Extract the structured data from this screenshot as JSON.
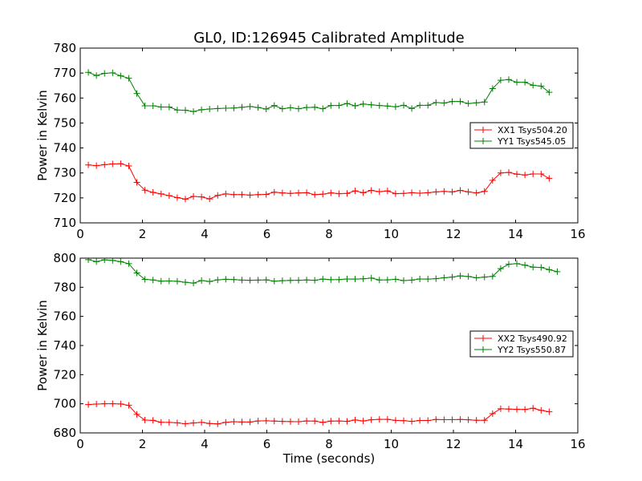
{
  "figure": {
    "title": "GL0, ID:126945 Calibrated Amplitude",
    "xlabel": "Time (seconds)"
  },
  "colors": {
    "red": "#ff0000",
    "green": "#008000"
  },
  "chart_data": [
    {
      "type": "line",
      "ylabel": "Power in Kelvin",
      "xlim": [
        0,
        16
      ],
      "ylim": [
        710,
        780
      ],
      "xticks": [
        "0",
        "2",
        "4",
        "6",
        "8",
        "10",
        "12",
        "14",
        "16"
      ],
      "yticks": [
        "710",
        "720",
        "730",
        "740",
        "750",
        "760",
        "770",
        "780"
      ],
      "legend_placement": "center-right",
      "series": [
        {
          "name": "XX1 Tsys504.20",
          "color": "#ff0000",
          "marker": "+",
          "x": [
            0.26,
            0.52,
            0.78,
            1.04,
            1.3,
            1.56,
            1.82,
            2.08,
            2.34,
            2.6,
            2.86,
            3.12,
            3.38,
            3.64,
            3.9,
            4.16,
            4.42,
            4.68,
            4.94,
            5.2,
            5.46,
            5.72,
            5.98,
            6.24,
            6.5,
            6.76,
            7.02,
            7.28,
            7.54,
            7.8,
            8.06,
            8.32,
            8.58,
            8.84,
            9.1,
            9.36,
            9.62,
            9.88,
            10.14,
            10.4,
            10.66,
            10.92,
            11.18,
            11.44,
            11.7,
            11.96,
            12.22,
            12.48,
            12.74,
            13.0,
            13.26,
            13.52,
            13.78,
            14.04,
            14.3,
            14.56,
            14.82,
            15.08,
            15.34
          ],
          "y": [
            733.2,
            732.9,
            733.3,
            733.6,
            733.7,
            732.8,
            726.2,
            723.1,
            722.2,
            721.6,
            720.9,
            720.1,
            719.5,
            720.6,
            720.4,
            719.6,
            721.0,
            721.6,
            721.3,
            721.3,
            721.1,
            721.3,
            721.4,
            722.3,
            722.0,
            721.8,
            722.0,
            722.1,
            721.3,
            721.5,
            722.0,
            721.7,
            721.8,
            722.8,
            722.1,
            723.0,
            722.5,
            722.8,
            721.7,
            721.8,
            722.1,
            721.9,
            722.1,
            722.4,
            722.6,
            722.4,
            723.0,
            722.4,
            722.0,
            722.6,
            727.0,
            730.0,
            730.2,
            729.5,
            729.2,
            729.6,
            729.6,
            727.8,
            null
          ]
        },
        {
          "name": "YY1 Tsys545.05",
          "color": "#008000",
          "marker": "+",
          "x": [
            0.26,
            0.52,
            0.78,
            1.04,
            1.3,
            1.56,
            1.82,
            2.08,
            2.34,
            2.6,
            2.86,
            3.12,
            3.38,
            3.64,
            3.9,
            4.16,
            4.42,
            4.68,
            4.94,
            5.2,
            5.46,
            5.72,
            5.98,
            6.24,
            6.5,
            6.76,
            7.02,
            7.28,
            7.54,
            7.8,
            8.06,
            8.32,
            8.58,
            8.84,
            9.1,
            9.36,
            9.62,
            9.88,
            10.14,
            10.4,
            10.66,
            10.92,
            11.18,
            11.44,
            11.7,
            11.96,
            12.22,
            12.48,
            12.74,
            13.0,
            13.26,
            13.52,
            13.78,
            14.04,
            14.3,
            14.56,
            14.82,
            15.08,
            15.34
          ],
          "y": [
            770.3,
            769.0,
            769.9,
            770.1,
            768.9,
            767.9,
            761.8,
            756.9,
            756.9,
            756.4,
            756.4,
            755.2,
            755.1,
            754.6,
            755.3,
            755.6,
            755.8,
            755.9,
            756.0,
            756.3,
            756.6,
            756.2,
            755.6,
            757.0,
            755.7,
            756.1,
            755.7,
            756.2,
            756.3,
            755.7,
            757.0,
            757.0,
            757.8,
            756.9,
            757.6,
            757.3,
            757.0,
            756.8,
            756.5,
            757.1,
            755.8,
            757.1,
            757.1,
            758.2,
            758.0,
            758.6,
            758.6,
            757.8,
            758.1,
            758.4,
            763.8,
            767.1,
            767.4,
            766.3,
            766.3,
            765.1,
            764.8,
            762.3,
            null
          ]
        }
      ]
    },
    {
      "type": "line",
      "ylabel": "Power in Kelvin",
      "xlim": [
        0,
        16
      ],
      "ylim": [
        680,
        800
      ],
      "xticks": [
        "0",
        "2",
        "4",
        "6",
        "8",
        "10",
        "12",
        "14",
        "16"
      ],
      "yticks": [
        "680",
        "700",
        "720",
        "740",
        "760",
        "780",
        "800"
      ],
      "legend_placement": "center-right",
      "series": [
        {
          "name": "XX2 Tsys490.92",
          "color": "#ff0000",
          "marker": "+",
          "x": [
            0.26,
            0.52,
            0.78,
            1.04,
            1.3,
            1.56,
            1.82,
            2.08,
            2.34,
            2.6,
            2.86,
            3.12,
            3.38,
            3.64,
            3.9,
            4.16,
            4.42,
            4.68,
            4.94,
            5.2,
            5.46,
            5.72,
            5.98,
            6.24,
            6.5,
            6.76,
            7.02,
            7.28,
            7.54,
            7.8,
            8.06,
            8.32,
            8.58,
            8.84,
            9.1,
            9.36,
            9.62,
            9.88,
            10.14,
            10.4,
            10.66,
            10.92,
            11.18,
            11.44,
            11.7,
            11.96,
            12.22,
            12.48,
            12.74,
            13.0,
            13.26,
            13.52,
            13.78,
            14.04,
            14.3,
            14.56,
            14.82,
            15.08,
            15.34
          ],
          "y": [
            699.5,
            699.8,
            700.0,
            700.0,
            699.9,
            698.9,
            692.7,
            688.8,
            688.6,
            687.3,
            687.2,
            686.9,
            686.3,
            686.8,
            687.2,
            686.5,
            686.2,
            687.2,
            687.7,
            687.5,
            687.5,
            688.2,
            688.3,
            688.1,
            687.9,
            687.8,
            687.7,
            688.2,
            688.1,
            687.2,
            688.1,
            688.2,
            687.9,
            688.9,
            688.2,
            689.0,
            689.3,
            689.3,
            688.6,
            688.4,
            687.9,
            688.5,
            688.5,
            689.2,
            689.1,
            689.1,
            689.2,
            689.0,
            688.7,
            688.7,
            693.2,
            696.6,
            696.4,
            696.2,
            696.1,
            696.9,
            695.5,
            694.5,
            null
          ]
        },
        {
          "name": "YY2 Tsys550.87",
          "color": "#008000",
          "marker": "+",
          "x": [
            0.26,
            0.52,
            0.78,
            1.04,
            1.3,
            1.56,
            1.82,
            2.08,
            2.34,
            2.6,
            2.86,
            3.12,
            3.38,
            3.64,
            3.9,
            4.16,
            4.42,
            4.68,
            4.94,
            5.2,
            5.46,
            5.72,
            5.98,
            6.24,
            6.5,
            6.76,
            7.02,
            7.28,
            7.54,
            7.8,
            8.06,
            8.32,
            8.58,
            8.84,
            9.1,
            9.36,
            9.62,
            9.88,
            10.14,
            10.4,
            10.66,
            10.92,
            11.18,
            11.44,
            11.7,
            11.96,
            12.22,
            12.48,
            12.74,
            13.0,
            13.26,
            13.52,
            13.78,
            14.04,
            14.3,
            14.56,
            14.82,
            15.08,
            15.34
          ],
          "y": [
            799.0,
            797.6,
            798.8,
            798.4,
            797.6,
            796.2,
            789.8,
            785.4,
            785.0,
            784.2,
            784.3,
            784.1,
            783.4,
            782.9,
            784.6,
            784.0,
            785.1,
            785.5,
            785.3,
            784.9,
            784.8,
            784.9,
            785.1,
            784.2,
            784.5,
            784.7,
            784.8,
            785.0,
            784.8,
            785.6,
            785.2,
            785.3,
            785.7,
            785.6,
            785.8,
            786.3,
            785.0,
            785.1,
            785.5,
            784.6,
            784.9,
            785.7,
            785.6,
            785.9,
            786.5,
            787.0,
            787.8,
            787.4,
            786.5,
            787.0,
            787.5,
            792.8,
            795.8,
            796.2,
            795.2,
            793.8,
            793.6,
            792.1,
            790.7
          ]
        }
      ]
    }
  ]
}
